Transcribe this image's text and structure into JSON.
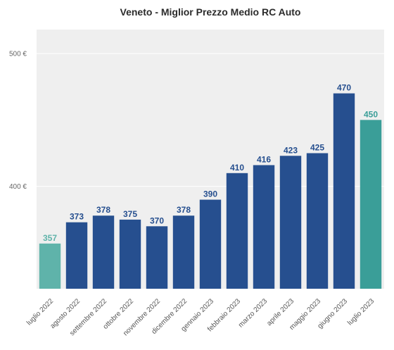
{
  "chart_data": {
    "type": "bar",
    "title": "Veneto - Miglior Prezzo Medio RC Auto",
    "xlabel": "",
    "ylabel": "",
    "categories": [
      "luglio 2022",
      "agosto 2022",
      "settembre 2022",
      "ottobre 2022",
      "novembre 2022",
      "dicembre 2022",
      "gennaio 2023",
      "febbraio 2023",
      "marzo 2023",
      "aprile 2023",
      "maggio 2023",
      "giugno 2023",
      "luglio 2023"
    ],
    "values": [
      357,
      373,
      378,
      375,
      370,
      378,
      390,
      410,
      416,
      423,
      425,
      470,
      450
    ],
    "data_labels": [
      "357",
      "373",
      "378",
      "375",
      "370",
      "378",
      "390",
      "410",
      "416",
      "423",
      "425",
      "470",
      "450"
    ],
    "ylim": [
      323,
      518
    ],
    "yticks": [
      400,
      500
    ],
    "ytick_labels": [
      "400 €",
      "500 €"
    ],
    "grid": true,
    "colors": {
      "default_bar": "#264f8f",
      "first_bar": "#5fb3aa",
      "last_bar": "#3a9e98",
      "default_label": "#264f8f",
      "first_label": "#5fb3aa",
      "last_label": "#3a9e98",
      "plot_background": "#efefef",
      "grid": "#ffffff"
    }
  }
}
